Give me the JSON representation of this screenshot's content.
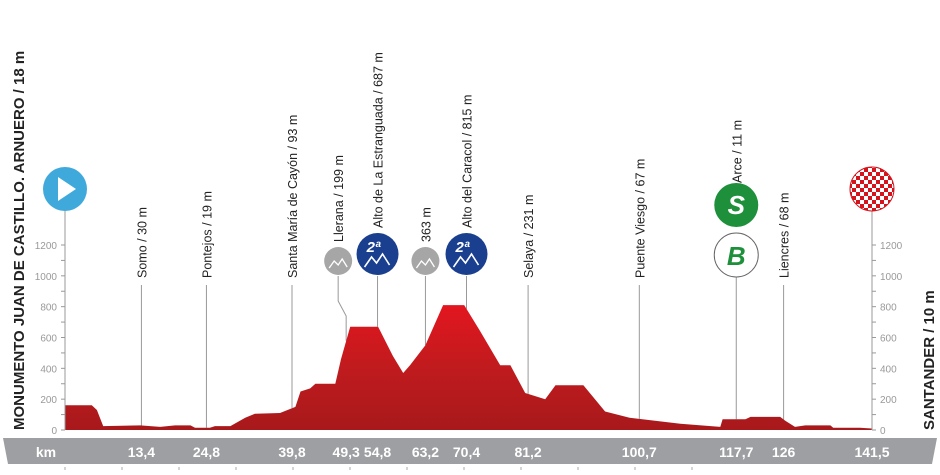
{
  "chart_data": {
    "type": "area",
    "title": "",
    "xlabel": "km",
    "ylabel": "",
    "xlim": [
      0,
      141.5
    ],
    "ylim": [
      0,
      1200
    ],
    "y_ticks": [
      0,
      200,
      400,
      600,
      800,
      1000,
      1200
    ],
    "grid": false,
    "start_label": "MONUMENTO JUAN DE CASTILLO. ARNUERO / 18 m",
    "finish_label": "SANTANDER / 10 m",
    "profile": {
      "x": [
        0,
        4.7,
        5.6,
        6.7,
        13.2,
        16.7,
        19.3,
        22,
        22.8,
        25.4,
        26.3,
        29,
        31.6,
        33.3,
        37.7,
        40.4,
        41.3,
        43,
        43.9,
        47.4,
        48.4,
        50,
        54.9,
        57.5,
        59.3,
        60.5,
        63.2,
        66.3,
        70,
        72.8,
        76.3,
        78.1,
        80.7,
        84.2,
        86,
        90.9,
        94.7,
        99,
        107.9,
        114.9,
        115.3,
        119.3,
        120.2,
        125.4,
        126.3,
        128,
        129.8,
        134.2,
        134.7,
        139.4,
        141.5
      ],
      "y": [
        160,
        160,
        130,
        25,
        30,
        20,
        30,
        30,
        15,
        15,
        25,
        25,
        80,
        105,
        110,
        150,
        250,
        270,
        300,
        300,
        460,
        670,
        670,
        480,
        370,
        420,
        550,
        810,
        810,
        640,
        420,
        420,
        240,
        200,
        290,
        290,
        120,
        80,
        40,
        20,
        70,
        70,
        85,
        85,
        60,
        20,
        30,
        30,
        15,
        15,
        10
      ]
    },
    "km_markers": [
      "13,4",
      "24,8",
      "39,8",
      "49,3",
      "54,8",
      "63,2",
      "70,4",
      "81,2",
      "100,7",
      "117,7",
      "126",
      "141,5"
    ],
    "waypoints": [
      {
        "km": 13.4,
        "label": "Somo / 30 m",
        "alt": 30
      },
      {
        "km": 24.8,
        "label": "Pontejos / 19 m",
        "alt": 19
      },
      {
        "km": 39.8,
        "label": "Santa María de Cayón / 93 m",
        "alt": 93
      },
      {
        "km": 49.3,
        "label": "Llerana / 199 m",
        "alt": 199,
        "icon": "uncategorized-climb-icon"
      },
      {
        "km": 54.8,
        "label": "Alto de La Estranguada / 687 m",
        "alt": 687,
        "icon": "second-category-climb-icon",
        "badge": "2ª"
      },
      {
        "km": 63.2,
        "label": "363 m",
        "alt": 363,
        "icon": "uncategorized-climb-icon"
      },
      {
        "km": 70.4,
        "label": "Alto del Caracol / 815 m",
        "alt": 815,
        "icon": "second-category-climb-icon",
        "badge": "2ª"
      },
      {
        "km": 81.2,
        "label": "Selaya / 231 m",
        "alt": 231
      },
      {
        "km": 100.7,
        "label": "Puente Viesgo / 67 m",
        "alt": 67
      },
      {
        "km": 117.7,
        "label": "Arce / 11 m",
        "alt": 11,
        "icon": "sprint-bonus-icon",
        "sprint": "S",
        "bonus": "B"
      },
      {
        "km": 126,
        "label": "Liencres / 68 m",
        "alt": 68
      }
    ],
    "colors": {
      "profile": "#b31a1a",
      "profile_light": "#e3161f",
      "start": "#3fa9dc",
      "climb_2": "#1a3f8f",
      "climb_uncat": "#a6a6a6",
      "sprint": "#1e8f3a",
      "axis_band": "#9d9fa2"
    }
  }
}
